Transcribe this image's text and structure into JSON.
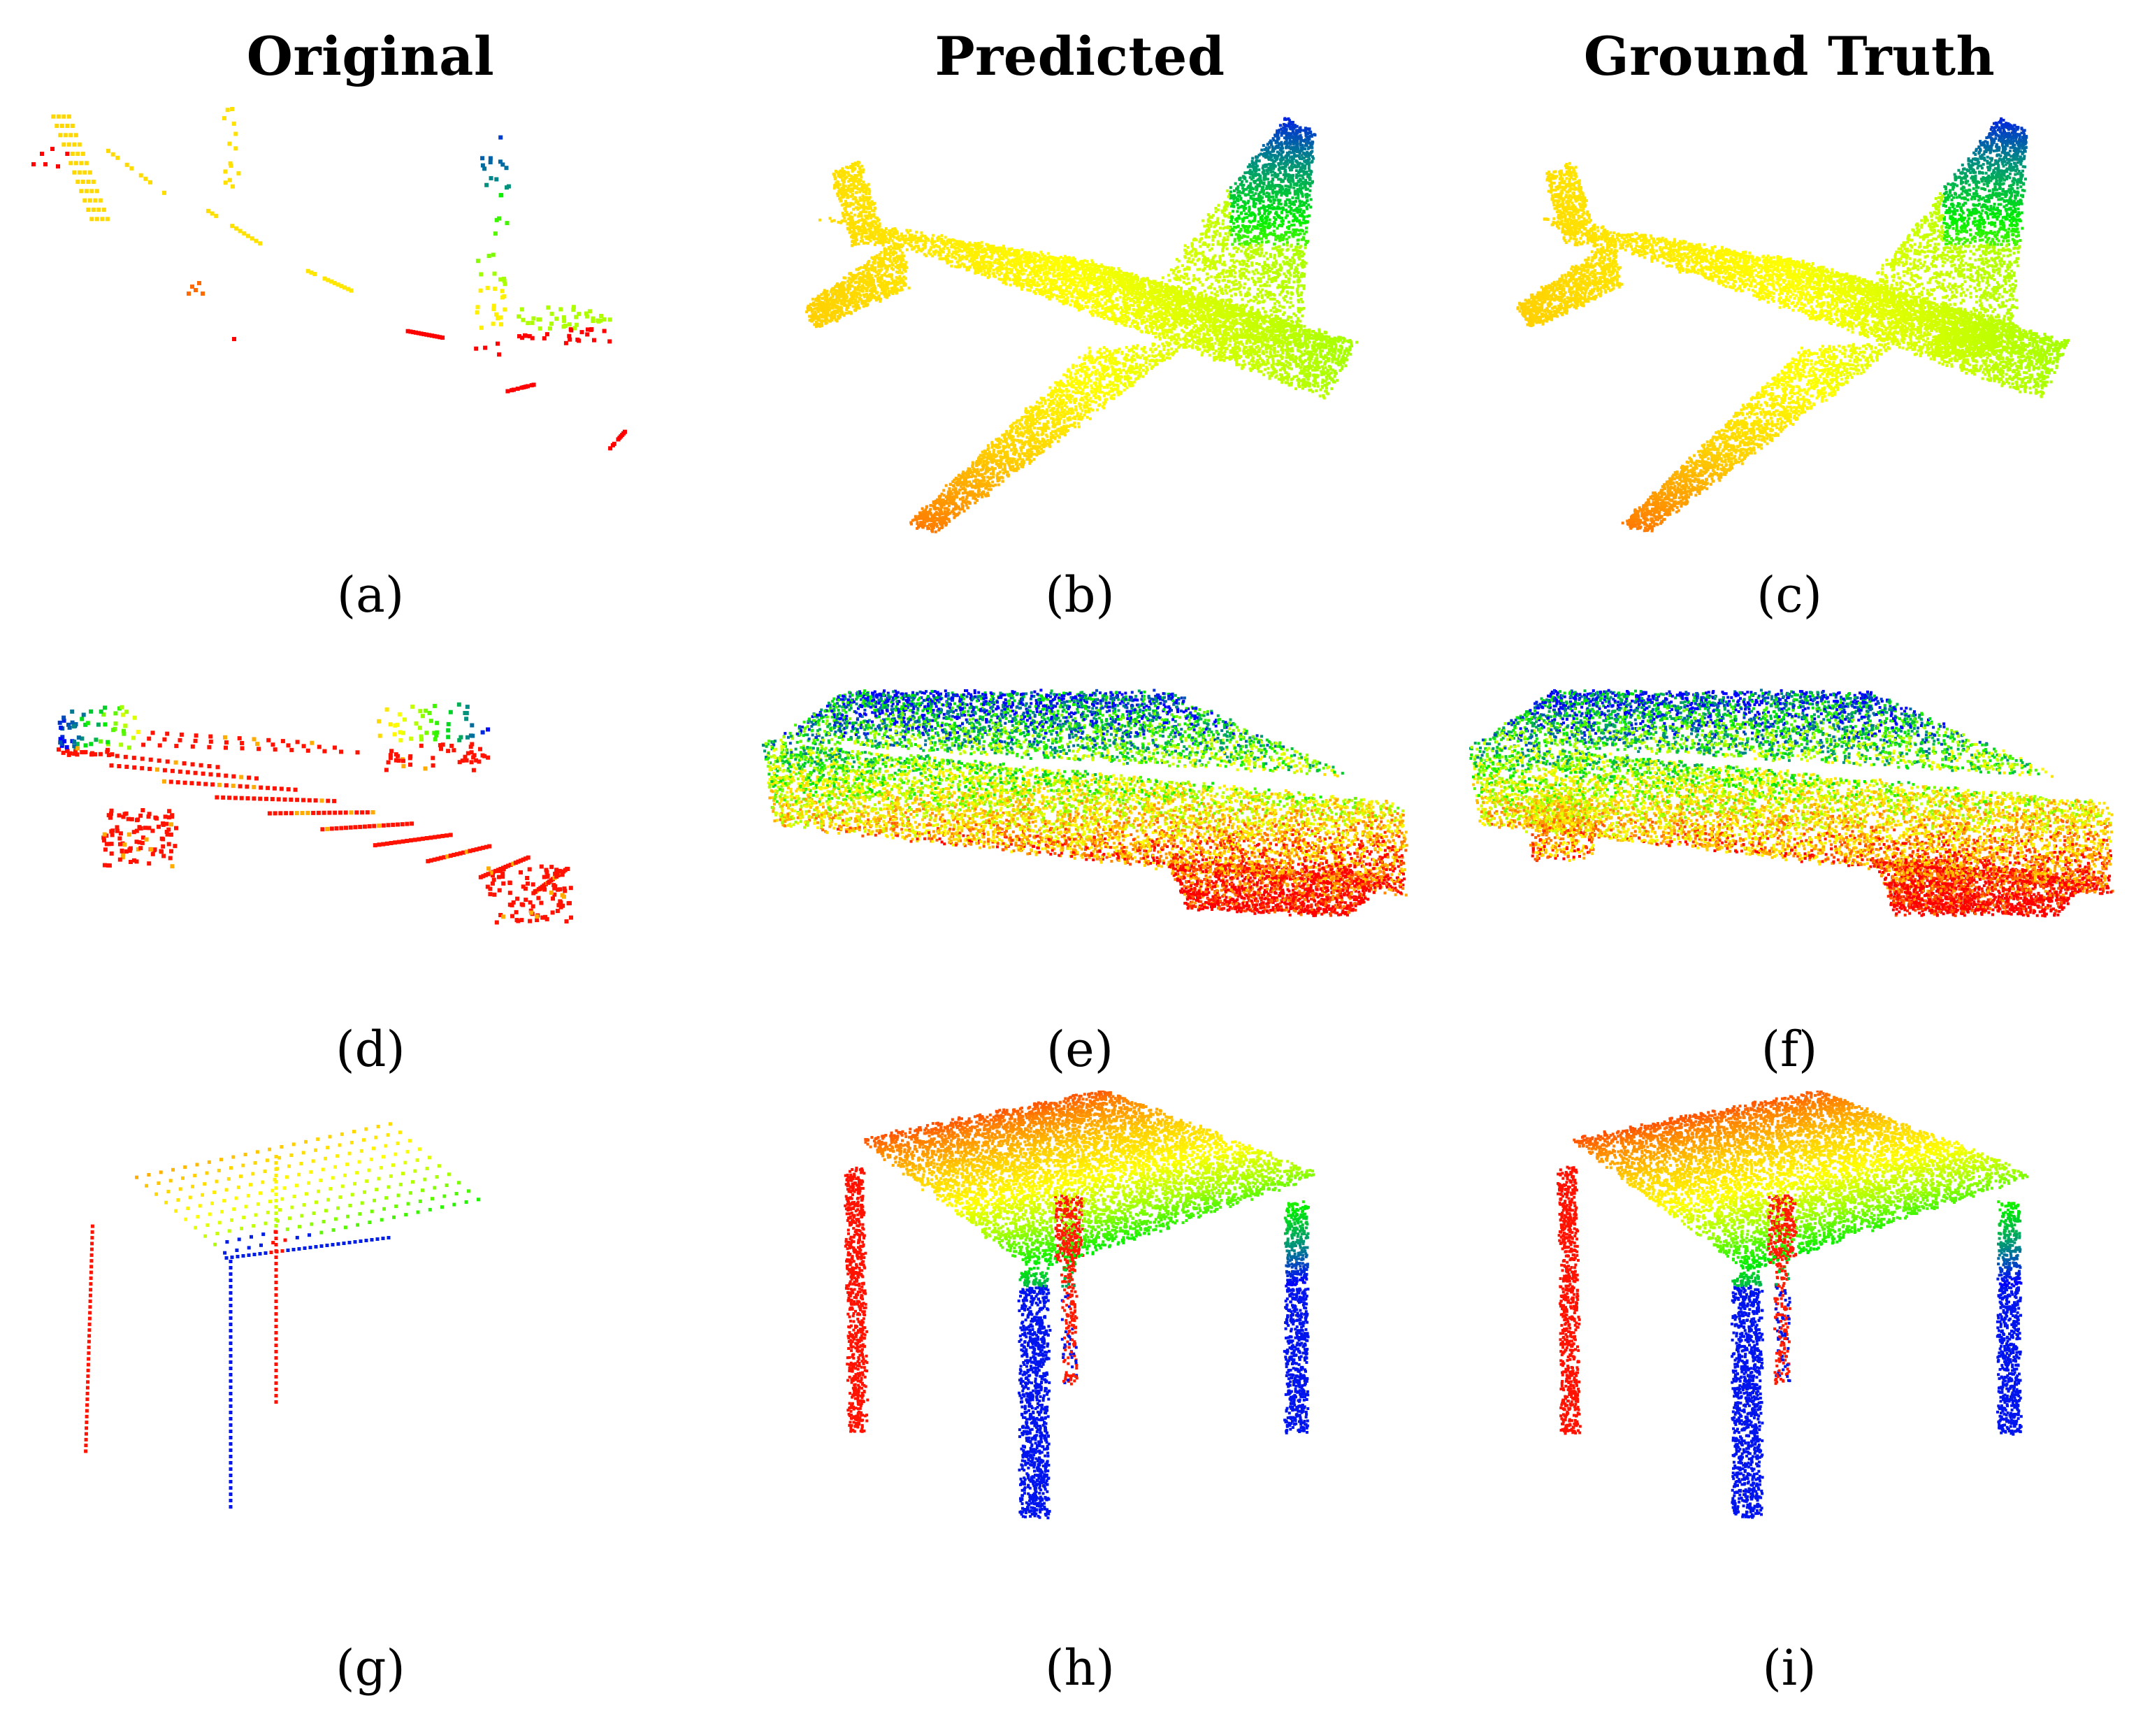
{
  "figure": {
    "column_titles": [
      "Original",
      "Predicted",
      "Ground Truth"
    ],
    "rows": [
      {
        "object": "airplane",
        "panels": [
          {
            "label": "a",
            "caption": "(a)",
            "column": "Original"
          },
          {
            "label": "b",
            "caption": "(b)",
            "column": "Predicted"
          },
          {
            "label": "c",
            "caption": "(c)",
            "column": "Ground Truth"
          }
        ]
      },
      {
        "object": "car",
        "panels": [
          {
            "label": "d",
            "caption": "(d)",
            "column": "Original"
          },
          {
            "label": "e",
            "caption": "(e)",
            "column": "Predicted"
          },
          {
            "label": "f",
            "caption": "(f)",
            "column": "Ground Truth"
          }
        ]
      },
      {
        "object": "table",
        "panels": [
          {
            "label": "g",
            "caption": "(g)",
            "column": "Original"
          },
          {
            "label": "h",
            "caption": "(h)",
            "column": "Predicted"
          },
          {
            "label": "i",
            "caption": "(i)",
            "column": "Ground Truth"
          }
        ]
      }
    ],
    "colormap": [
      "#ff0000",
      "#ff7f00",
      "#ffd000",
      "#ffff00",
      "#9fff00",
      "#00ee00",
      "#008f7f",
      "#0000ff"
    ]
  }
}
